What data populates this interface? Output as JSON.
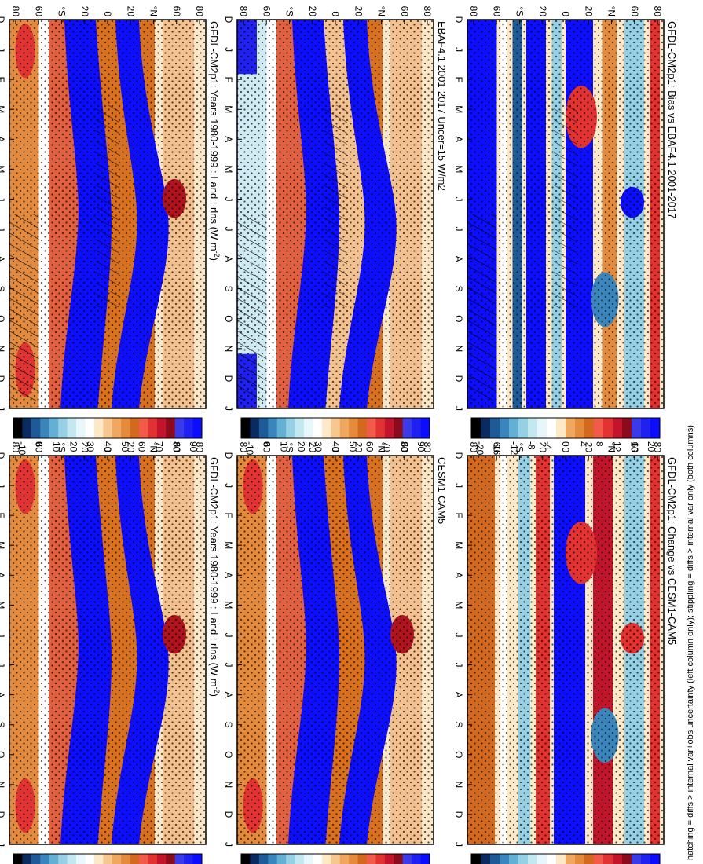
{
  "figure_caption": "hatching = diffs > internal var+obs uncertainty (left column only); stippling = diffs > internal var only (both columns)",
  "colors": {
    "absolute_scale": [
      "#0c0cff",
      "#2020f0",
      "#3a3ae8",
      "#8b0a1c",
      "#c2142a",
      "#e23232",
      "#f25a4a",
      "#d2691e",
      "#e48a3c",
      "#f0a860",
      "#f6c890",
      "#fde8c8",
      "#ffffff",
      "#e6f6fa",
      "#c4e8f0",
      "#96d0e4",
      "#64b0d4",
      "#3a86bc",
      "#1e5a98",
      "#0a2a60",
      "#000000"
    ],
    "difference_scale": [
      "#0c0cff",
      "#2020f0",
      "#3a3ae8",
      "#8b0a1c",
      "#c2142a",
      "#e23232",
      "#f25a4a",
      "#d2691e",
      "#e48a3c",
      "#f0a860",
      "#fde8c8",
      "#ffffff",
      "#e6f6fa",
      "#c4e8f0",
      "#96d0e4",
      "#64b0d4",
      "#3a86bc",
      "#1e5a98",
      "#0a2a60",
      "#000000"
    ]
  },
  "chart_data": [
    {
      "type": "heatmap",
      "id": "p1",
      "title": "GFDL-CM2p1: Years 1980-1999 : Land : rlns (W m",
      "title_sup": "-2",
      "title_end": ")",
      "x_ticks": [
        "D",
        "J",
        "F",
        "M",
        "A",
        "M",
        "J",
        "J",
        "A",
        "S",
        "O",
        "N",
        "D",
        "J"
      ],
      "y_ticks": [
        "80",
        "60",
        "°N",
        "20",
        "0",
        "20",
        "°S",
        "60",
        "80"
      ],
      "colorbar_ticks": [
        "90",
        "80",
        "70",
        "60",
        "50",
        "40",
        "30",
        "20",
        "10",
        "0",
        "-10"
      ],
      "scale": "absolute",
      "hatching": true,
      "stippling": true
    },
    {
      "type": "heatmap",
      "id": "p2",
      "title": "GFDL-CM2p1: Years 1980-1999 : Land : rlns (W m",
      "title_sup": "-2",
      "title_end": ")",
      "x_ticks": [
        "D",
        "J",
        "F",
        "M",
        "A",
        "M",
        "J",
        "J",
        "A",
        "S",
        "O",
        "N",
        "D",
        "J"
      ],
      "y_ticks": [
        "80",
        "60",
        "°N",
        "20",
        "0",
        "20",
        "°S",
        "60",
        "80"
      ],
      "colorbar_ticks": [
        "90",
        "80",
        "70",
        "60",
        "50",
        "40",
        "30",
        "20",
        "10",
        "0",
        "-10"
      ],
      "scale": "absolute",
      "hatching": false,
      "stippling": true
    },
    {
      "type": "heatmap",
      "id": "p3",
      "title": "EBAF4.1 2001-2017 Uncer=15 W/m2",
      "x_ticks": [
        "D",
        "J",
        "F",
        "M",
        "A",
        "M",
        "J",
        "J",
        "A",
        "S",
        "O",
        "N",
        "D",
        "J"
      ],
      "y_ticks": [
        "80",
        "60",
        "°N",
        "20",
        "0",
        "20",
        "°S",
        "60",
        "80"
      ],
      "colorbar_ticks": [
        "90",
        "80",
        "70",
        "60",
        "50",
        "40",
        "30",
        "20",
        "10",
        "0",
        "-10"
      ],
      "scale": "absolute",
      "hatching": true,
      "stippling": true
    },
    {
      "type": "heatmap",
      "id": "p4",
      "title": "CESM1-CAM5",
      "x_ticks": [
        "D",
        "J",
        "F",
        "M",
        "A",
        "M",
        "J",
        "J",
        "A",
        "S",
        "O",
        "N",
        "D",
        "J"
      ],
      "y_ticks": [
        "80",
        "60",
        "°N",
        "20",
        "0",
        "20",
        "°S",
        "60",
        "80"
      ],
      "colorbar_ticks": [
        "90",
        "80",
        "70",
        "60",
        "50",
        "40",
        "30",
        "20",
        "10",
        "0",
        "-10"
      ],
      "scale": "absolute",
      "hatching": false,
      "stippling": true
    },
    {
      "type": "heatmap",
      "id": "p5",
      "title": "GFDL-CM2p1: Bias vs EBAF4.1 2001-2017",
      "x_ticks": [
        "D",
        "J",
        "F",
        "M",
        "A",
        "M",
        "J",
        "J",
        "A",
        "S",
        "O",
        "N",
        "D",
        "J"
      ],
      "y_ticks": [
        "80",
        "60",
        "°N",
        "20",
        "0",
        "20",
        "°S",
        "60",
        "80"
      ],
      "colorbar_ticks": [
        "20",
        "16",
        "12",
        "8",
        "4",
        "0",
        "-4",
        "-8",
        "-12",
        "-16",
        "-20"
      ],
      "scale": "difference",
      "hatching": true,
      "stippling": true
    },
    {
      "type": "heatmap",
      "id": "p6",
      "title": "GFDL-CM2p1: Change vs CESM1-CAM5",
      "x_ticks": [
        "D",
        "J",
        "F",
        "M",
        "A",
        "M",
        "J",
        "J",
        "A",
        "S",
        "O",
        "N",
        "D",
        "J"
      ],
      "y_ticks": [
        "80",
        "60",
        "°N",
        "20",
        "0",
        "20",
        "°S",
        "60",
        "80"
      ],
      "colorbar_ticks": [
        "20",
        "16",
        "12",
        "8",
        "4",
        "0",
        "-4",
        "-8",
        "-12",
        "-16",
        "-20"
      ],
      "scale": "difference",
      "hatching": false,
      "stippling": true
    }
  ]
}
